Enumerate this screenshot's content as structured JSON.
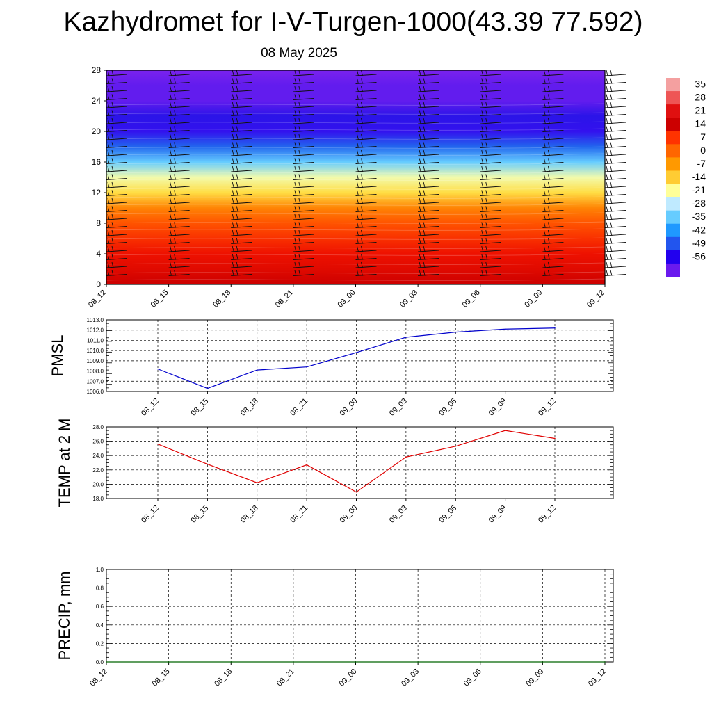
{
  "header": {
    "title": "Kazhydromet for I-V-Turgen-1000(43.39 77.592)",
    "date": "08 May 2025"
  },
  "colors": {
    "pmsl_line": "#0000cc",
    "temp_line": "#e00000",
    "precip_line": "#006400",
    "grid": "#000000"
  },
  "colorbar": {
    "labels": [
      "35",
      "28",
      "21",
      "14",
      "7",
      "0",
      "-7",
      "-14",
      "-21",
      "-28",
      "-35",
      "-42",
      "-49",
      "-56"
    ],
    "colors": [
      "#f4a0a0",
      "#ee5555",
      "#e01010",
      "#cc0000",
      "#ff3300",
      "#ff6600",
      "#ff9900",
      "#ffcc33",
      "#ffff99",
      "#bfeaff",
      "#66ccff",
      "#1f99ff",
      "#2255ee",
      "#2200ee",
      "#6a1aee"
    ]
  },
  "chart_data": [
    {
      "type": "heatmap",
      "name": "temperature-wind-cross-section",
      "x_ticks": [
        "08_12",
        "08_15",
        "08_18",
        "08_21",
        "09_00",
        "09_03",
        "09_06",
        "09_09",
        "09_12"
      ],
      "y_ticks": [
        "0",
        "4",
        "8",
        "12",
        "16",
        "20",
        "24",
        "28"
      ],
      "ylim": [
        0,
        28
      ],
      "z_range": [
        -56,
        35
      ],
      "levels_y": [
        0,
        2,
        4,
        6,
        8,
        10,
        12,
        14,
        16,
        18,
        20,
        22,
        24,
        26,
        28
      ],
      "levels_z": [
        30,
        24,
        20,
        15,
        10,
        3,
        -10,
        -16,
        -26,
        -40,
        -52,
        -50,
        -56,
        -56,
        -58
      ],
      "wind_barbs": "shown at each time column"
    },
    {
      "type": "line",
      "ylabel": "PMSL",
      "x": [
        "08_12",
        "08_15",
        "08_18",
        "08_21",
        "09_00",
        "09_03",
        "09_06",
        "09_09",
        "09_12"
      ],
      "y_ticks": [
        "1006.0",
        "1007.0",
        "1008.0",
        "1009.0",
        "1010.0",
        "1011.0",
        "1012.0",
        "1013.0"
      ],
      "ylim": [
        1006.0,
        1013.0
      ],
      "values": [
        1008.2,
        1006.3,
        1008.1,
        1008.4,
        1009.8,
        1011.3,
        1011.8,
        1012.1,
        1012.2
      ],
      "grid": true
    },
    {
      "type": "line",
      "ylabel": "TEMP at 2 M",
      "x": [
        "08_12",
        "08_15",
        "08_18",
        "08_21",
        "09_00",
        "09_03",
        "09_06",
        "09_09",
        "09_12"
      ],
      "y_ticks": [
        "18.0",
        "20.0",
        "22.0",
        "24.0",
        "26.0",
        "28.0"
      ],
      "ylim": [
        18.0,
        28.0
      ],
      "values": [
        25.6,
        22.8,
        20.2,
        22.7,
        18.9,
        23.8,
        25.3,
        27.5,
        26.4
      ],
      "grid": true
    },
    {
      "type": "line",
      "ylabel": "PRECIP, mm",
      "x": [
        "08_12",
        "08_15",
        "08_18",
        "08_21",
        "09_00",
        "09_03",
        "09_06",
        "09_09",
        "09_12"
      ],
      "y_ticks": [
        "0.0",
        "0.2",
        "0.4",
        "0.6",
        "0.8",
        "1.0"
      ],
      "ylim": [
        0.0,
        1.0
      ],
      "values": [
        0,
        0,
        0,
        0,
        0,
        0,
        0,
        0,
        0
      ],
      "grid": true
    }
  ]
}
